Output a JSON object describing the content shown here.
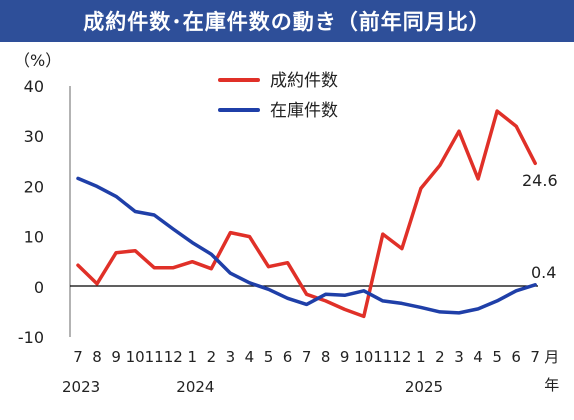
{
  "chart_data": {
    "type": "line",
    "title": "成約件数･在庫件数の動き（前年同月比）",
    "ylabel": "（%）",
    "ylim": [
      -10,
      40
    ],
    "yticks": [
      "40",
      "30",
      "20",
      "10",
      "0",
      "-10"
    ],
    "ytick_values": [
      40,
      30,
      20,
      10,
      0,
      -10
    ],
    "months": [
      "7",
      "8",
      "9",
      "10",
      "11",
      "12",
      "1",
      "2",
      "3",
      "4",
      "5",
      "6",
      "7",
      "8",
      "9",
      "10",
      "11",
      "12",
      "1",
      "2",
      "3",
      "4",
      "5",
      "6",
      "7"
    ],
    "years": [
      {
        "label": "2023",
        "month_index": 0
      },
      {
        "label": "2024",
        "month_index": 6
      },
      {
        "label": "2025",
        "month_index": 18
      }
    ],
    "x_unit_month": "月",
    "x_unit_year": "年",
    "grid": false,
    "zero_line": true,
    "series": [
      {
        "name": "成約件数",
        "color": "#e03028",
        "values": [
          4.3,
          0.6,
          6.8,
          7.2,
          3.8,
          3.8,
          5.0,
          3.6,
          10.8,
          10.0,
          4.0,
          4.8,
          -1.5,
          -2.8,
          -4.5,
          -5.9,
          10.5,
          7.6,
          19.6,
          24.2,
          31.0,
          21.5,
          35.0,
          32.0,
          24.6
        ],
        "end_label": "24.6"
      },
      {
        "name": "在庫件数",
        "color": "#1f3fa8",
        "values": [
          21.6,
          20.0,
          18.0,
          15.0,
          14.3,
          11.5,
          8.8,
          6.5,
          2.7,
          0.8,
          -0.5,
          -2.3,
          -3.5,
          -1.5,
          -1.7,
          -0.8,
          -2.8,
          -3.3,
          -4.1,
          -5.0,
          -5.2,
          -4.4,
          -2.8,
          -0.8,
          0.4
        ],
        "end_label": "0.4"
      }
    ],
    "legend_placement": "top-center"
  }
}
